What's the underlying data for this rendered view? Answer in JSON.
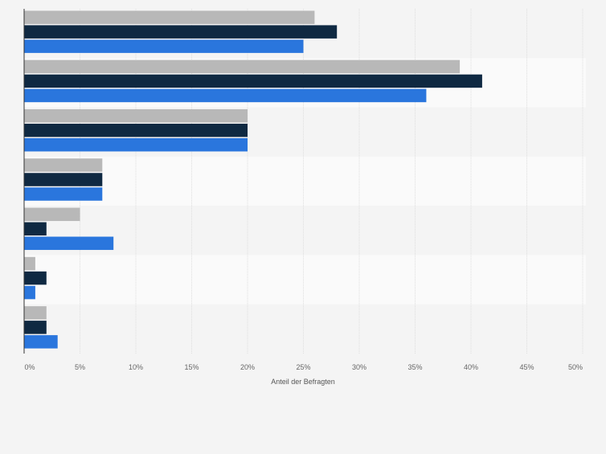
{
  "chart_data": {
    "type": "bar",
    "orientation": "horizontal",
    "categories": [
      "",
      "",
      "",
      "",
      "",
      "",
      ""
    ],
    "series": [
      {
        "values": [
          26,
          39,
          20,
          7,
          5,
          1,
          2
        ],
        "color": "#b8b8b8"
      },
      {
        "values": [
          28,
          41,
          20,
          7,
          2,
          2,
          2
        ],
        "color": "#0f2942"
      },
      {
        "values": [
          25,
          36,
          20,
          7,
          8,
          1,
          3
        ],
        "color": "#2a76dd"
      }
    ],
    "xlabel": "Anteil der Befragten",
    "xlim": [
      0,
      50
    ],
    "xticks": [
      "0%",
      "5%",
      "10%",
      "15%",
      "20%",
      "25%",
      "30%",
      "35%",
      "40%",
      "45%",
      "50%"
    ],
    "grid": true,
    "legend": "none"
  }
}
